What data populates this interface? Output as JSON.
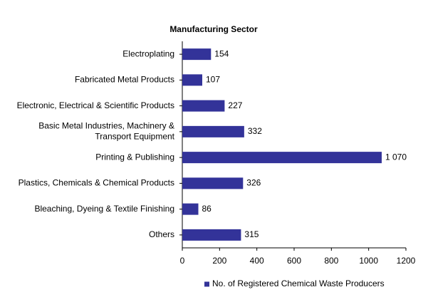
{
  "chart_data": {
    "type": "bar",
    "orientation": "horizontal",
    "title": "Manufacturing Sector",
    "categories": [
      "Electroplating",
      "Fabricated Metal Products",
      "Electronic, Electrical & Scientific Products",
      [
        "Basic Metal Industries, Machinery &",
        "Transport Equipment"
      ],
      "Printing & Publishing",
      "Plastics, Chemicals & Chemical Products",
      "Bleaching, Dyeing & Textile Finishing",
      "Others"
    ],
    "series": [
      {
        "name": "No. of Registered Chemical Waste Producers",
        "color": "#333399",
        "values": [
          154,
          107,
          227,
          332,
          1070,
          326,
          86,
          315
        ],
        "value_labels": [
          "154",
          "107",
          "227",
          "332",
          "1 070",
          "326",
          "86",
          "315"
        ]
      }
    ],
    "xlim": [
      0,
      1200
    ],
    "xticks": [
      0,
      200,
      400,
      600,
      800,
      1000,
      1200
    ],
    "grid": false,
    "legend": "bottom"
  }
}
